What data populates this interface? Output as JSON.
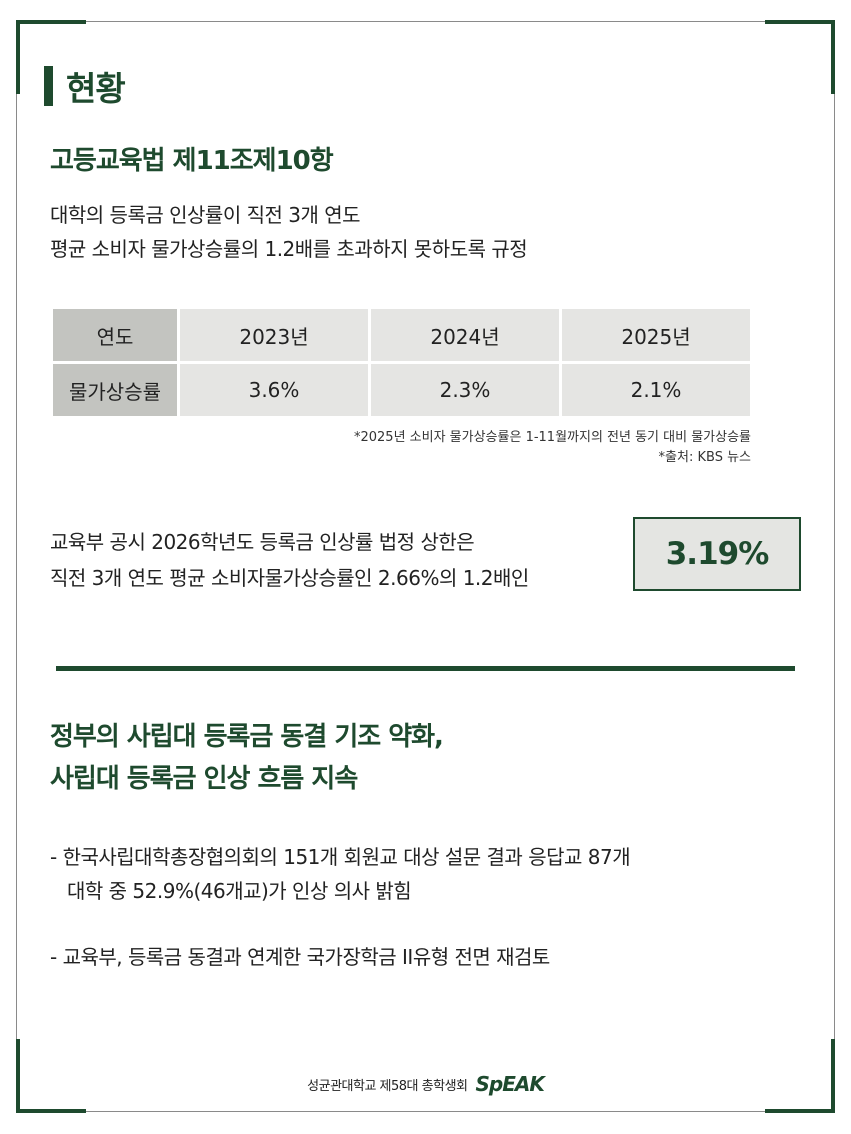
{
  "section": {
    "title": "현황"
  },
  "law": {
    "title": "고등교육법 제11조제10항",
    "desc_line1": "대학의 등록금 인상률이 직전 3개 연도",
    "desc_line2": "평균 소비자 물가상승률의 1.2배를 초과하지 못하도록 규정"
  },
  "table": {
    "headers": [
      "연도",
      "2023년",
      "2024년",
      "2025년"
    ],
    "row_label": "물가상승률",
    "values": [
      "3.6%",
      "2.3%",
      "2.1%"
    ]
  },
  "notes": {
    "note1": "*2025년 소비자 물가상승률은 1-11월까지의 전년 동기 대비 물가상승률",
    "note2": "*출처: KBS 뉴스"
  },
  "cap": {
    "line1": "교육부 공시 2026학년도 등록금 인상률 법정 상한은",
    "line2": "직전 3개 연도 평균 소비자물가상승률인 2.66%의 1.2배인",
    "value": "3.19%"
  },
  "headline": {
    "line1": "정부의 사립대 등록금 동결 기조 약화,",
    "line2": "사립대 등록금 인상 흐름 지속"
  },
  "bullets": {
    "b1_line1": "- 한국사립대학총장협의회의 151개 회원교 대상 설문 결과 응답교 87개",
    "b1_line2": "대학 중 52.9%(46개교)가 인상 의사 밝힘",
    "b2": "- 교육부, 등록금 동결과 연계한 국가장학금 II유형 전면 재검토"
  },
  "footer": {
    "org": "성균관대학교 제58대 총학생회",
    "logo": "SpEAK"
  },
  "colors": {
    "brand_green": "#1e4a2e",
    "table_head": "#c3c4c0",
    "table_cell": "#e5e5e3"
  }
}
